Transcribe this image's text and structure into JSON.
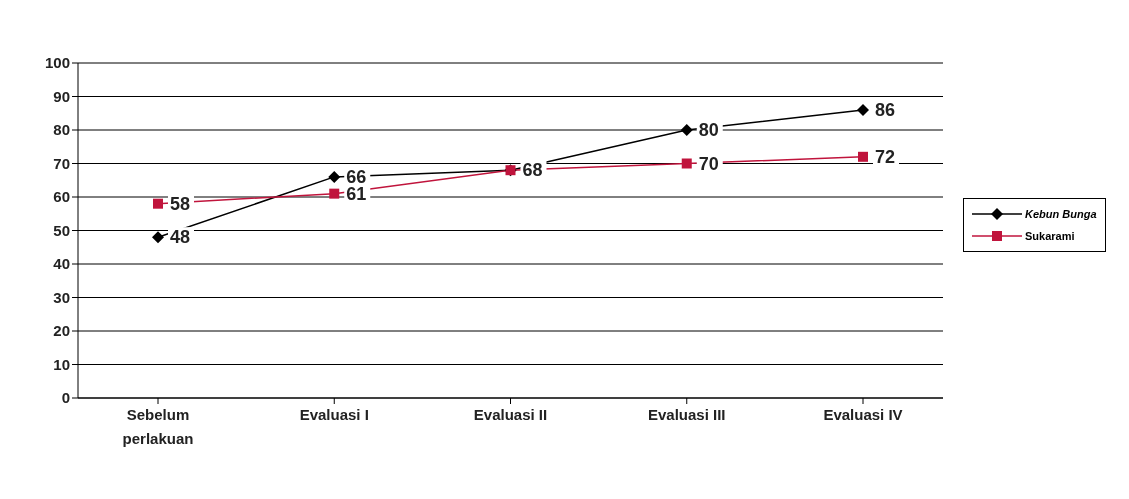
{
  "chart_data": {
    "type": "line",
    "categories": [
      "Sebelum perlakuan",
      "Evaluasi I",
      "Evaluasi II",
      "Evaluasi III",
      "Evaluasi IV"
    ],
    "series": [
      {
        "name": "Kebun Bunga",
        "color": "#000000",
        "marker": "diamond",
        "values": [
          48,
          66,
          68,
          80,
          86
        ],
        "value_labels": [
          "48",
          "66",
          null,
          "80",
          "86"
        ]
      },
      {
        "name": "Sukarami",
        "color": "#c0143c",
        "marker": "square",
        "values": [
          58,
          61,
          68,
          70,
          72
        ],
        "value_labels": [
          "58",
          "61",
          "68",
          "70",
          "72"
        ]
      }
    ],
    "ylim": [
      0,
      100
    ],
    "yticks": [
      0,
      10,
      20,
      30,
      40,
      50,
      60,
      70,
      80,
      90,
      100
    ],
    "grid": "y",
    "legend": "right"
  }
}
